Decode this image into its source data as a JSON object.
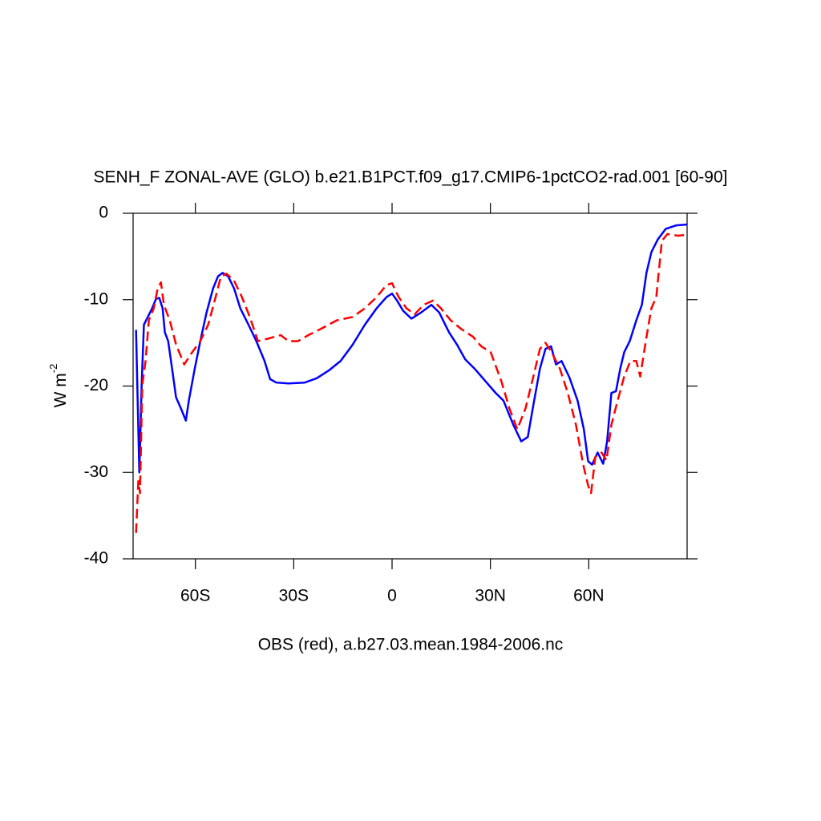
{
  "chart_data": {
    "type": "line",
    "title": "SENH_F ZONAL-AVE (GLO) b.e21.B1PCT.f09_g17.CMIP6-1pctCO2-rad.001 [60-90]",
    "xlabel": "OBS (red), a.b27.03.mean.1984-2006.nc",
    "ylabel": {
      "text": "W m",
      "superscript": "-2"
    },
    "xlim": [
      -79,
      90
    ],
    "ylim": [
      -40,
      0
    ],
    "xticks": [
      {
        "value": -60,
        "label": "60S"
      },
      {
        "value": -30,
        "label": "30S"
      },
      0,
      {
        "value": 30,
        "label": "30N"
      },
      {
        "value": 60,
        "label": "60N"
      }
    ],
    "yticks": [
      -40,
      -30,
      -20,
      -10,
      0
    ],
    "series": [
      {
        "color": "#0000ff",
        "dash": false,
        "x": [
          -78.1,
          -77.1,
          -76.4,
          -75.7,
          -74.5,
          -73.2,
          -72,
          -71,
          -70,
          -69.3,
          -68.3,
          -67.1,
          -65.9,
          -64.4,
          -62.9,
          -62,
          -60.2,
          -58.5,
          -56.6,
          -54.6,
          -53.1,
          -51.7,
          -50,
          -48.2,
          -46.3,
          -43.8,
          -41.4,
          -38.9,
          -37.2,
          -35.3,
          -31.6,
          -26.7,
          -23,
          -19.3,
          -15.7,
          -12,
          -8.3,
          -4.7,
          -1.7,
          0,
          1.5,
          3.4,
          5.9,
          8.8,
          12,
          14.4,
          17.4,
          19.8,
          22.3,
          25.2,
          28.4,
          31.6,
          34,
          37,
          39.4,
          41.4,
          43.1,
          45.1,
          46.8,
          48.5,
          50,
          51.7,
          54.1,
          56.6,
          58.5,
          59.8,
          61,
          62.7,
          64.4,
          65.6,
          66.9,
          68.3,
          69.6,
          70.8,
          72.5,
          74.5,
          76.2,
          77.6,
          79.1,
          81.1,
          83.5,
          86.7,
          90
        ],
        "values": [
          -13.5,
          -30,
          -20,
          -12.9,
          -12,
          -11,
          -9.9,
          -9.8,
          -11,
          -13.8,
          -14.8,
          -18,
          -21.3,
          -22.6,
          -24,
          -21.7,
          -18,
          -14.8,
          -11.5,
          -8.7,
          -7.3,
          -6.9,
          -7.3,
          -8.7,
          -11,
          -12.9,
          -14.8,
          -17.1,
          -19.2,
          -19.6,
          -19.7,
          -19.6,
          -19.1,
          -18.2,
          -17.1,
          -15.2,
          -12.9,
          -11,
          -9.7,
          -9.3,
          -10.1,
          -11.3,
          -12.2,
          -11.5,
          -10.6,
          -11.5,
          -13.8,
          -15.2,
          -16.9,
          -18,
          -19.4,
          -20.8,
          -21.7,
          -24.5,
          -26.4,
          -25.9,
          -22.2,
          -18,
          -15.7,
          -15.4,
          -17.5,
          -17.1,
          -19,
          -21.7,
          -25,
          -28.7,
          -29.1,
          -27.7,
          -29,
          -26.4,
          -20.8,
          -20.6,
          -18,
          -16.1,
          -14.8,
          -12.4,
          -10.6,
          -6.9,
          -4.5,
          -3,
          -1.8,
          -1.4,
          -1.3
        ]
      },
      {
        "color": "#ff0000",
        "dash": true,
        "x": [
          -78.1,
          -77.4,
          -76.9,
          -76.2,
          -75.2,
          -74.2,
          -72.7,
          -71.5,
          -70.5,
          -69.6,
          -67.8,
          -65.9,
          -63.4,
          -61,
          -58.5,
          -56.1,
          -54.1,
          -52.2,
          -50.5,
          -48.2,
          -45.8,
          -43.4,
          -40.9,
          -37.7,
          -34,
          -31.6,
          -28.7,
          -25.5,
          -21.8,
          -16.9,
          -12,
          -8.3,
          -4.7,
          -1.7,
          0,
          2,
          4.4,
          6.9,
          9.6,
          12.5,
          14.9,
          17.9,
          21.1,
          24.7,
          27.2,
          30.1,
          33.3,
          35.8,
          38.2,
          40.7,
          43.1,
          45.1,
          46.8,
          48.7,
          51.2,
          53.6,
          56.1,
          58.3,
          59.8,
          60.7,
          62,
          63.9,
          65.4,
          66.9,
          68.8,
          70.8,
          72.7,
          74.5,
          75.7,
          77.4,
          79.1,
          80.6,
          82.3,
          84,
          87.2,
          90
        ],
        "values": [
          -37,
          -31,
          -32.4,
          -19.9,
          -17.1,
          -12.4,
          -11,
          -8.7,
          -8,
          -10.6,
          -12.4,
          -15.2,
          -17.5,
          -16.1,
          -14.8,
          -12.9,
          -10.1,
          -7.3,
          -7,
          -7.8,
          -9.7,
          -12,
          -14.8,
          -14.5,
          -14.1,
          -14.8,
          -14.8,
          -14.1,
          -13.4,
          -12.4,
          -12,
          -11,
          -9.7,
          -8.3,
          -8.1,
          -9.7,
          -11,
          -11.7,
          -10.6,
          -10.1,
          -11,
          -12.4,
          -13.4,
          -14.3,
          -15.4,
          -16.1,
          -19.4,
          -22.6,
          -25,
          -22.6,
          -18.9,
          -15.7,
          -15,
          -16.1,
          -18,
          -20.8,
          -24.5,
          -29.1,
          -31.5,
          -32.4,
          -28.2,
          -27.7,
          -28.6,
          -24.5,
          -21.7,
          -18.9,
          -17.1,
          -17.1,
          -18.9,
          -14.8,
          -11,
          -9.7,
          -3.2,
          -2.4,
          -2.6,
          -2.5
        ]
      }
    ]
  }
}
